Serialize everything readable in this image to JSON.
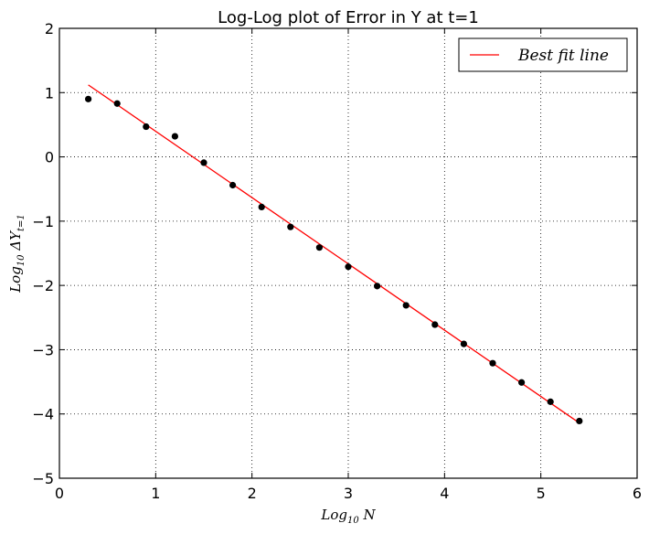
{
  "chart_data": {
    "type": "scatter",
    "title": "Log-Log plot of Error in Y at t=1",
    "xlabel": "Log10 N",
    "ylabel": "Log10 ΔY t=1",
    "xlim": [
      0,
      6
    ],
    "ylim": [
      -5,
      2
    ],
    "xticks": [
      0,
      1,
      2,
      3,
      4,
      5,
      6
    ],
    "yticks": [
      2,
      1,
      0,
      -1,
      -2,
      -3,
      -4,
      -5
    ],
    "xtick_labels": [
      "0",
      "1",
      "2",
      "3",
      "4",
      "5",
      "6"
    ],
    "ytick_labels": [
      "2",
      "1",
      "0",
      "−1",
      "−2",
      "−3",
      "−4",
      "−5"
    ],
    "grid": true,
    "legend_position": "top-right",
    "series": [
      {
        "type": "scatter",
        "color": "#000000",
        "x": [
          0.3,
          0.6,
          0.9,
          1.2,
          1.5,
          1.8,
          2.1,
          2.4,
          2.7,
          3.0,
          3.3,
          3.6,
          3.9,
          4.2,
          4.5,
          4.8,
          5.1,
          5.4
        ],
        "y": [
          0.9,
          0.83,
          0.47,
          0.32,
          -0.09,
          -0.44,
          -0.78,
          -1.09,
          -1.41,
          -1.71,
          -2.01,
          -2.31,
          -2.61,
          -2.91,
          -3.21,
          -3.51,
          -3.81,
          -4.11
        ]
      },
      {
        "type": "line",
        "name": "Best fit line",
        "color": "#ff0000",
        "x": [
          0.3,
          5.4
        ],
        "y": [
          1.12,
          -4.14
        ]
      }
    ]
  }
}
